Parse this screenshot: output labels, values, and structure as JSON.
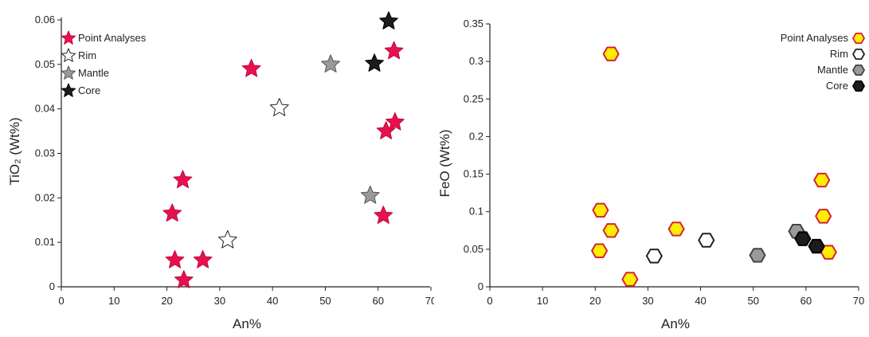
{
  "chart_data": [
    {
      "type": "scatter",
      "xlabel": "An%",
      "ylabel": "TiO₂ (Wt%)",
      "xlim": [
        0,
        70
      ],
      "ylim": [
        0,
        0.06
      ],
      "xticks": [
        "0",
        "10",
        "20",
        "30",
        "40",
        "50",
        "60",
        "70"
      ],
      "yticks": [
        "0",
        "0.01",
        "0.02",
        "0.03",
        "0.04",
        "0.05",
        "0.06"
      ],
      "marker": "star",
      "legend_position": "top-left",
      "series": [
        {
          "name": "Point Analyses",
          "fill": "#e8114f",
          "stroke": "#c00a3e",
          "points": [
            [
              21,
              0.0165
            ],
            [
              21.5,
              0.006
            ],
            [
              23,
              0.024
            ],
            [
              23.2,
              0.0015
            ],
            [
              26.8,
              0.006
            ],
            [
              36,
              0.049
            ],
            [
              61,
              0.016
            ],
            [
              61.5,
              0.035
            ],
            [
              63.2,
              0.037
            ],
            [
              63,
              0.053
            ]
          ]
        },
        {
          "name": "Rim",
          "fill": "#ffffff",
          "stroke": "#222222",
          "points": [
            [
              31.5,
              0.0105
            ],
            [
              41.3,
              0.0402
            ]
          ]
        },
        {
          "name": "Mantle",
          "fill": "#9a9a9a",
          "stroke": "#555555",
          "points": [
            [
              51,
              0.05
            ],
            [
              58.5,
              0.0205
            ]
          ]
        },
        {
          "name": "Core",
          "fill": "#1c1c1c",
          "stroke": "#000000",
          "points": [
            [
              59.3,
              0.0502
            ],
            [
              62,
              0.0597
            ]
          ]
        }
      ]
    },
    {
      "type": "scatter",
      "xlabel": "An%",
      "ylabel": "FeO (Wt%)",
      "xlim": [
        0,
        70
      ],
      "ylim": [
        0,
        0.35
      ],
      "xticks": [
        "0",
        "10",
        "20",
        "30",
        "40",
        "50",
        "60",
        "70"
      ],
      "yticks": [
        "0",
        "0.05",
        "0.1",
        "0.15",
        "0.2",
        "0.25",
        "0.3",
        "0.35"
      ],
      "marker": "hexagon",
      "legend_position": "top-right",
      "series": [
        {
          "name": "Point Analyses",
          "fill": "#ffee00",
          "stroke": "#d4223a",
          "points": [
            [
              23,
              0.31
            ],
            [
              21,
              0.102
            ],
            [
              23,
              0.075
            ],
            [
              20.8,
              0.048
            ],
            [
              26.6,
              0.01
            ],
            [
              35.4,
              0.077
            ],
            [
              63,
              0.142
            ],
            [
              63.3,
              0.094
            ],
            [
              64.3,
              0.046
            ]
          ]
        },
        {
          "name": "Rim",
          "fill": "#ffffff",
          "stroke": "#222222",
          "points": [
            [
              31.2,
              0.041
            ],
            [
              41.1,
              0.062
            ]
          ]
        },
        {
          "name": "Mantle",
          "fill": "#9a9a9a",
          "stroke": "#444444",
          "points": [
            [
              50.8,
              0.042
            ],
            [
              58.2,
              0.074
            ]
          ]
        },
        {
          "name": "Core",
          "fill": "#1c1c1c",
          "stroke": "#000000",
          "points": [
            [
              59.4,
              0.064
            ],
            [
              62,
              0.054
            ]
          ]
        }
      ]
    }
  ]
}
